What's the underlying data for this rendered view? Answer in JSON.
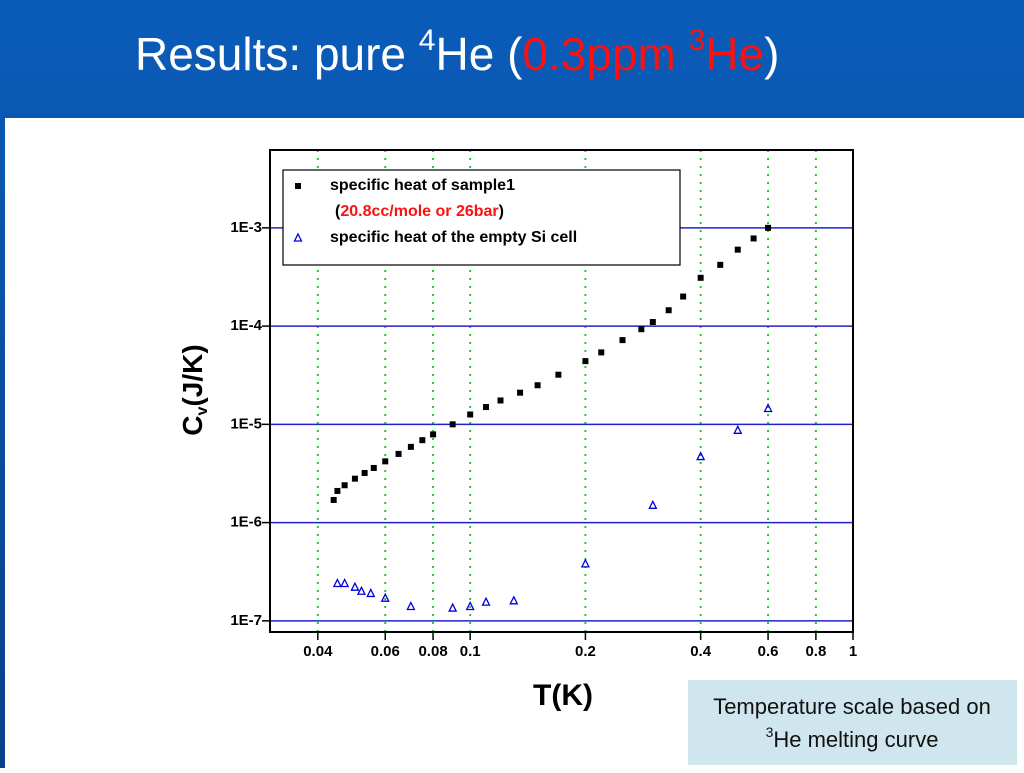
{
  "title_parts": [
    "Results: pure ",
    "4",
    "He (",
    "0.3ppm ",
    "3",
    "He",
    ")"
  ],
  "note": {
    "line1": "Temperature scale based on",
    "sup": "3",
    "line2": "He melting curve"
  },
  "chart_data": {
    "type": "scatter",
    "x_label": "T(K)",
    "y_label_parts": [
      "C",
      "v",
      "(J/K)"
    ],
    "log_x": true,
    "log_y": true,
    "xlim": [
      0.03,
      1
    ],
    "ylim": [
      7.7e-08,
      0.0062
    ],
    "xticks": [
      0.04,
      0.06,
      0.08,
      0.1,
      0.2,
      0.4,
      0.6,
      0.8,
      1
    ],
    "yticks": [
      {
        "value": 0.001,
        "label": "1E-3"
      },
      {
        "value": 0.0001,
        "label": "1E-4"
      },
      {
        "value": 1e-05,
        "label": "1E-5"
      },
      {
        "value": 1e-06,
        "label": "1E-6"
      },
      {
        "value": 1e-07,
        "label": "1E-7"
      }
    ],
    "x_grid_color": "#22cc22",
    "y_grid_color": "#2222cc",
    "legend_position": "upper left",
    "legend_note": [
      "(",
      "20.8cc/mole or 26bar",
      ")"
    ],
    "series": [
      {
        "name": "specific heat of sample1",
        "color": "#000000",
        "marker": "square",
        "x": [
          0.044,
          0.045,
          0.047,
          0.05,
          0.053,
          0.056,
          0.06,
          0.065,
          0.07,
          0.075,
          0.08,
          0.09,
          0.1,
          0.11,
          0.12,
          0.135,
          0.15,
          0.17,
          0.2,
          0.22,
          0.25,
          0.28,
          0.3,
          0.33,
          0.36,
          0.4,
          0.45,
          0.5,
          0.55,
          0.6
        ],
        "values": [
          1.7e-06,
          2.1e-06,
          2.4e-06,
          2.8e-06,
          3.2e-06,
          3.6e-06,
          4.2e-06,
          5e-06,
          5.9e-06,
          6.9e-06,
          7.9e-06,
          1e-05,
          1.26e-05,
          1.5e-05,
          1.75e-05,
          2.1e-05,
          2.5e-05,
          3.2e-05,
          4.4e-05,
          5.4e-05,
          7.2e-05,
          9.3e-05,
          0.00011,
          0.000145,
          0.0002,
          0.00031,
          0.00042,
          0.0006,
          0.00078,
          0.001
        ]
      },
      {
        "name": "specific heat of the empty Si cell",
        "color": "#0000dd",
        "marker": "triangle",
        "x": [
          0.045,
          0.047,
          0.05,
          0.052,
          0.055,
          0.06,
          0.07,
          0.09,
          0.1,
          0.11,
          0.13,
          0.2,
          0.3,
          0.4,
          0.5,
          0.6
        ],
        "values": [
          2.4e-07,
          2.4e-07,
          2.2e-07,
          2e-07,
          1.9e-07,
          1.7e-07,
          1.4e-07,
          1.35e-07,
          1.4e-07,
          1.55e-07,
          1.6e-07,
          3.8e-07,
          1.5e-06,
          4.7e-06,
          8.7e-06,
          1.45e-05
        ]
      }
    ]
  }
}
